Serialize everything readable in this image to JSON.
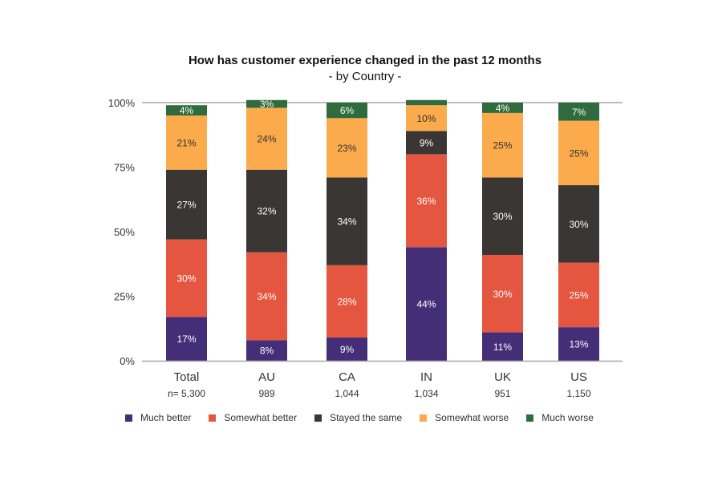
{
  "chart_data": {
    "type": "bar",
    "stacked": true,
    "title": "How has customer experience changed in the past 12 months",
    "subtitle": "- by Country -",
    "xlabel": "",
    "ylabel": "",
    "ylim": [
      0,
      100
    ],
    "yticks": [
      "0%",
      "25%",
      "50%",
      "75%",
      "100%"
    ],
    "ytick_values": [
      0,
      25,
      50,
      75,
      100
    ],
    "grid": false,
    "legend_position": "bottom",
    "categories": [
      "Total",
      "AU",
      "CA",
      "IN",
      "UK",
      "US"
    ],
    "sample_sizes": [
      "n= 5,300",
      "989",
      "1,044",
      "1,034",
      "951",
      "1,150"
    ],
    "series": [
      {
        "name": "Much better",
        "color": "#452e78",
        "label_color": "#ffffff",
        "values": [
          17,
          8,
          9,
          44,
          11,
          13
        ],
        "labels": [
          "17%",
          "8%",
          "9%",
          "44%",
          "11%",
          "13%"
        ]
      },
      {
        "name": "Somewhat better",
        "color": "#e45640",
        "label_color": "#ffffff",
        "values": [
          30,
          34,
          28,
          36,
          30,
          25
        ],
        "labels": [
          "30%",
          "34%",
          "28%",
          "36%",
          "30%",
          "25%"
        ]
      },
      {
        "name": "Stayed the same",
        "color": "#3a3633",
        "label_color": "#ffffff",
        "values": [
          27,
          32,
          34,
          9,
          30,
          30
        ],
        "labels": [
          "27%",
          "32%",
          "34%",
          "9%",
          "30%",
          "30%"
        ]
      },
      {
        "name": "Somewhat worse",
        "color": "#fbaa4c",
        "label_color": "#333333",
        "values": [
          21,
          24,
          23,
          10,
          25,
          25
        ],
        "labels": [
          "21%",
          "24%",
          "23%",
          "10%",
          "25%",
          "25%"
        ]
      },
      {
        "name": "Much worse",
        "color": "#2f6b3c",
        "label_color": "#ffffff",
        "values": [
          4,
          3,
          6,
          2,
          4,
          7
        ],
        "labels": [
          "4%",
          "3%",
          "6%",
          "",
          "4%",
          "7%"
        ]
      }
    ]
  }
}
